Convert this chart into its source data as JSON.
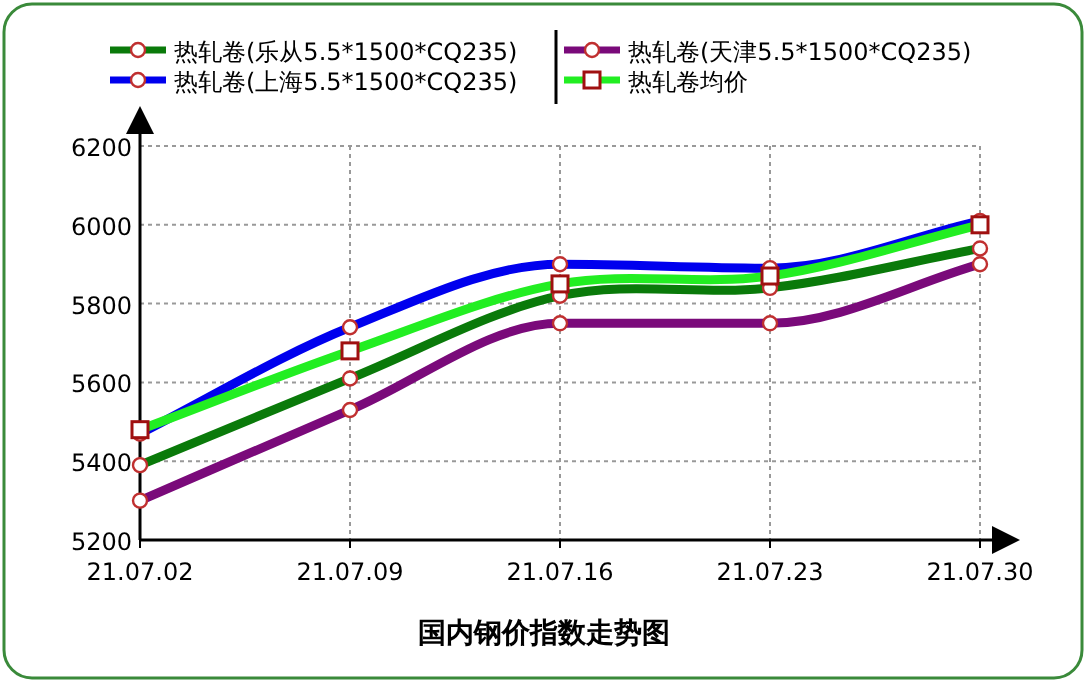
{
  "chart_data": {
    "type": "line",
    "title": "国内钢价指数走势图",
    "categories": [
      "21.07.02",
      "21.07.09",
      "21.07.16",
      "21.07.23",
      "21.07.30"
    ],
    "ylim": [
      5200,
      6200
    ],
    "yticks": [
      5200,
      5400,
      5600,
      5800,
      6000,
      6200
    ],
    "grid": true,
    "legend": "top",
    "series": [
      {
        "name": "热轧卷(乐从5.5*1500*CQ235)",
        "color": "#0a7a0a",
        "marker": "circle",
        "values": [
          5390,
          5610,
          5820,
          5840,
          5940
        ]
      },
      {
        "name": "热轧卷(上海5.5*1500*CQ235)",
        "color": "#0000ee",
        "marker": "circle",
        "values": [
          5470,
          5740,
          5900,
          5890,
          6010
        ]
      },
      {
        "name": "热轧卷(天津5.5*1500*CQ235)",
        "color": "#7a0a7a",
        "marker": "circle",
        "values": [
          5300,
          5530,
          5750,
          5750,
          5900
        ]
      },
      {
        "name": "热轧卷均价",
        "color": "#22ee22",
        "marker": "square",
        "values": [
          5480,
          5680,
          5850,
          5870,
          6000
        ]
      }
    ]
  }
}
